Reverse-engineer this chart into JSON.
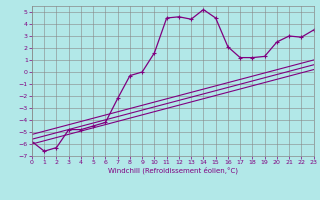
{
  "xlabel": "Windchill (Refroidissement éolien,°C)",
  "bg_color": "#b2e8e8",
  "grid_color": "#888888",
  "line_color": "#800080",
  "xlim": [
    0,
    23
  ],
  "ylim": [
    -7,
    5.5
  ],
  "xticks": [
    0,
    1,
    2,
    3,
    4,
    5,
    6,
    7,
    8,
    9,
    10,
    11,
    12,
    13,
    14,
    15,
    16,
    17,
    18,
    19,
    20,
    21,
    22,
    23
  ],
  "yticks": [
    -7,
    -6,
    -5,
    -4,
    -3,
    -2,
    -1,
    0,
    1,
    2,
    3,
    4,
    5
  ],
  "line1_x": [
    0,
    23
  ],
  "line1_y": [
    -6.0,
    0.2
  ],
  "line2_x": [
    0,
    23
  ],
  "line2_y": [
    -5.6,
    0.6
  ],
  "line3_x": [
    0,
    23
  ],
  "line3_y": [
    -5.2,
    1.0
  ],
  "curve_x": [
    0,
    1,
    2,
    3,
    4,
    5,
    6,
    7,
    8,
    9,
    10,
    11,
    12,
    13,
    14,
    15,
    16,
    17,
    18,
    19,
    20,
    21,
    22,
    23
  ],
  "curve_y": [
    -5.8,
    -6.6,
    -6.3,
    -4.8,
    -4.8,
    -4.5,
    -4.2,
    -2.2,
    -0.3,
    0.0,
    1.6,
    4.5,
    4.6,
    4.4,
    5.2,
    4.5,
    2.1,
    1.2,
    1.2,
    1.3,
    2.5,
    3.0,
    2.9,
    3.5
  ]
}
